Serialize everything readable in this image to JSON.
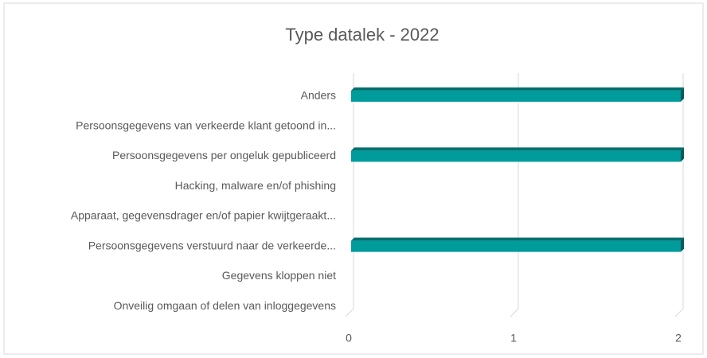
{
  "chart_data": {
    "type": "bar",
    "title": "Type datalek - 2022",
    "categories": [
      "Anders",
      "Persoonsgegevens van verkeerde klant getoond in...",
      "Persoonsgegevens per ongeluk gepubliceerd",
      "Hacking, malware en/of phishing",
      "Apparaat, gegevensdrager en/of papier kwijtgeraakt...",
      "Persoonsgegevens verstuurd naar de verkeerde...",
      "Gegevens kloppen niet",
      "Onveilig omgaan of delen van inloggegevens"
    ],
    "values": [
      2,
      0,
      2,
      0,
      0,
      2,
      0,
      0
    ],
    "color": "#009b9b",
    "xlim": [
      0,
      2
    ],
    "xticks": [
      0,
      1,
      2
    ],
    "grid": true
  }
}
